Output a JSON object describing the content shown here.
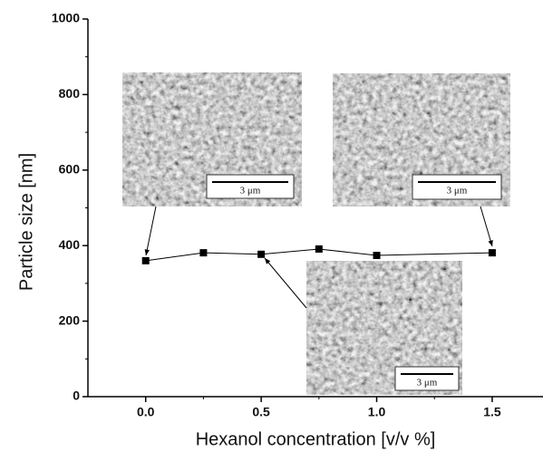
{
  "chart_data": {
    "type": "line",
    "xlabel": "Hexanol concentration [v/v %]",
    "ylabel": "Particle size [nm]",
    "x": [
      0,
      0.25,
      0.5,
      0.75,
      1.0,
      1.5
    ],
    "series": [
      {
        "color": "#000000",
        "values": [
          360,
          381,
          377,
          391,
          374,
          381
        ]
      }
    ],
    "xlim": [
      -0.25,
      1.72
    ],
    "ylim": [
      0,
      1000
    ],
    "xticks": [
      {
        "value": 0,
        "label": "0.0"
      },
      0.5,
      {
        "value": 1,
        "label": "1.0"
      },
      1.5
    ],
    "yticks": [
      0,
      200,
      400,
      600,
      800,
      1000
    ],
    "annotations": [
      "3 μm",
      "3 μm",
      "3 μm"
    ]
  }
}
